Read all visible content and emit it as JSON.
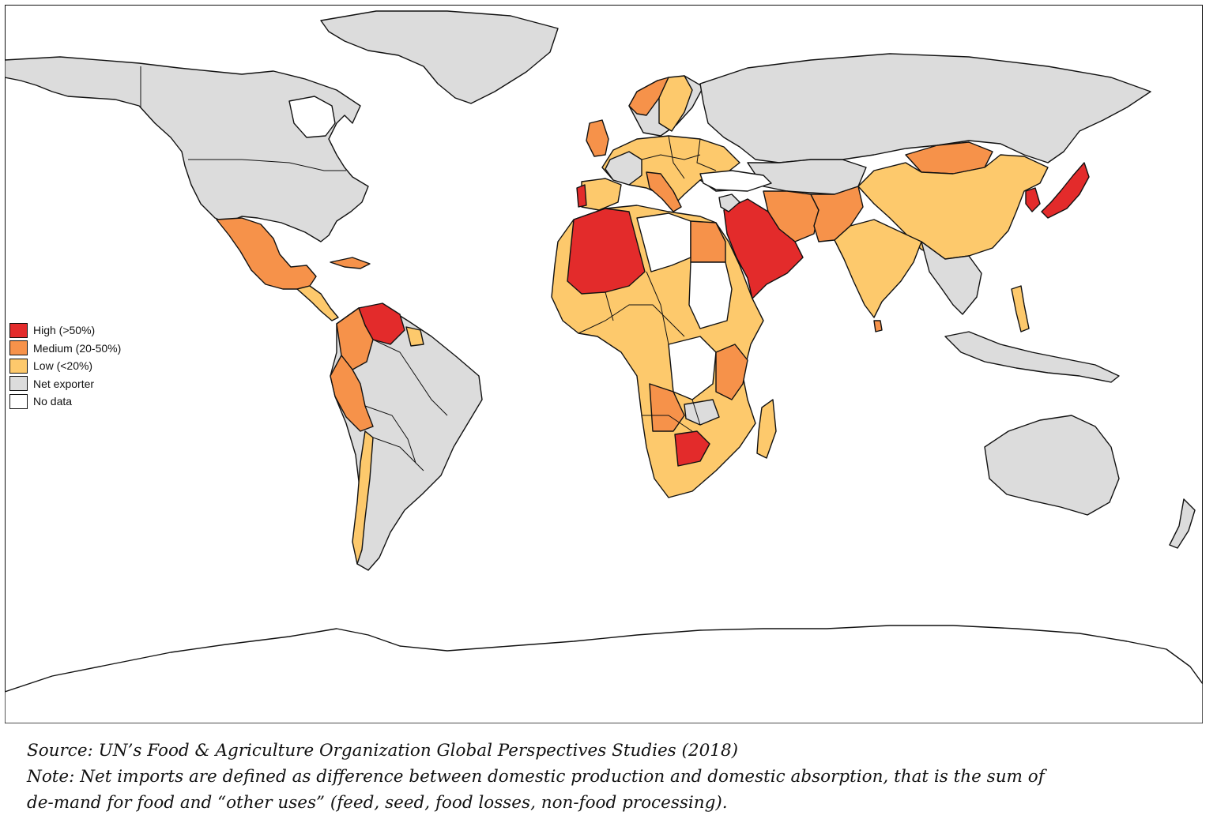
{
  "legend": {
    "items": [
      {
        "label": "High (>50%)",
        "color": "#e32b2b"
      },
      {
        "label": "Medium (20-50%)",
        "color": "#f6924a"
      },
      {
        "label": "Low (<20%)",
        "color": "#fdc96c"
      },
      {
        "label": "Net exporter",
        "color": "#dcdcdc"
      },
      {
        "label": "No data",
        "color": "#ffffff"
      }
    ]
  },
  "caption": {
    "source": "Source: UN’s Food & Agriculture Organization Global Perspectives Studies (2018)",
    "note_line1": "Note: Net imports are defined as difference between domestic production and domestic absorption, that is the sum of",
    "note_line2": "de-mand for food and “other uses” (feed, seed, food losses, non-food processing)."
  },
  "colors": {
    "high": "#e32b2b",
    "medium": "#f6924a",
    "low": "#fdc96c",
    "exporter": "#dcdcdc",
    "nodata": "#ffffff",
    "outline": "#111111"
  }
}
